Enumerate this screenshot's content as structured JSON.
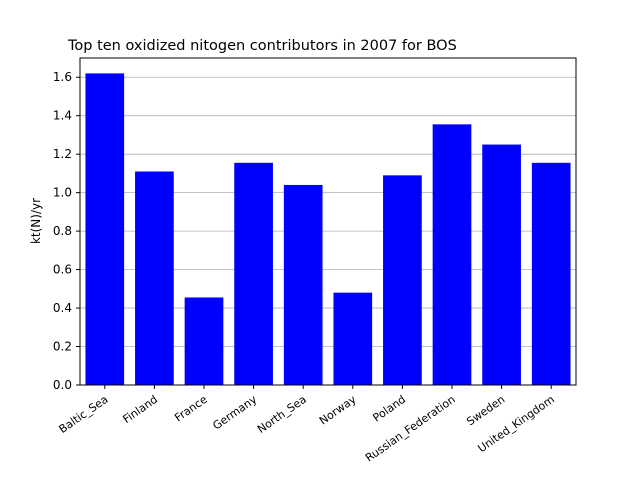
{
  "chart_data": {
    "type": "bar",
    "title": "Top ten oxidized nitogen contributors in 2007 for  BOS",
    "xlabel": "",
    "ylabel": "kt(N)/yr",
    "categories": [
      "Baltic_Sea",
      "Finland",
      "France",
      "Germany",
      "North_Sea",
      "Norway",
      "Poland",
      "Russian_Federation",
      "Sweden",
      "United_Kingdom"
    ],
    "values": [
      1.62,
      1.11,
      0.455,
      1.155,
      1.04,
      0.48,
      1.09,
      1.355,
      1.25,
      1.155
    ],
    "ylim": [
      0,
      1.7
    ],
    "yticks": [
      "0.0",
      "0.2",
      "0.4",
      "0.6",
      "0.8",
      "1.0",
      "1.2",
      "1.4",
      "1.6"
    ],
    "grid": "horizontal",
    "bar_color": "#0000ff",
    "grid_color": "#b0b0b0"
  }
}
